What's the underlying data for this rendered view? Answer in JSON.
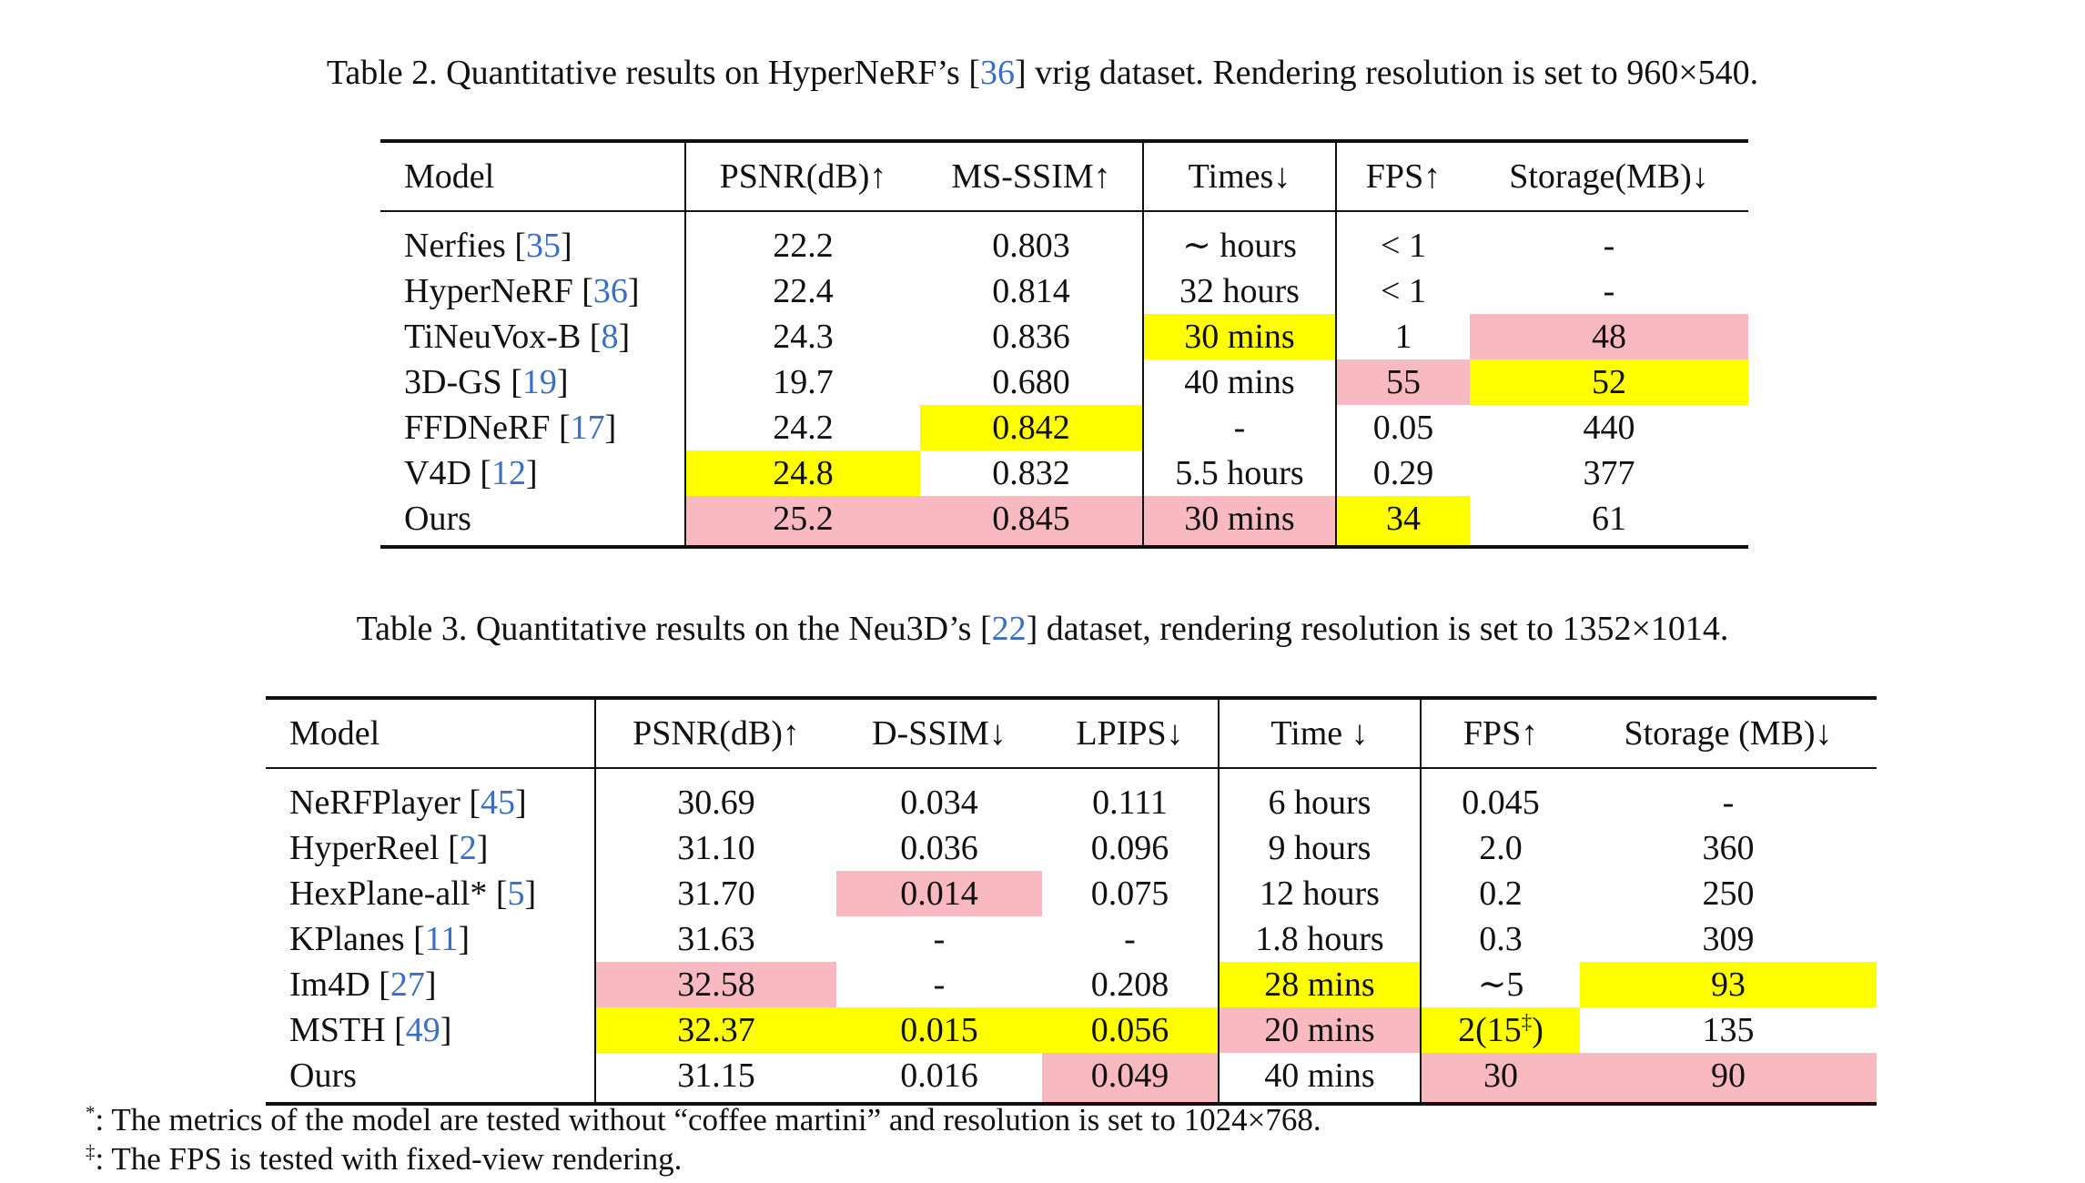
{
  "table2": {
    "caption": {
      "before": "Table 2. Quantitative results on HyperNeRF’s [",
      "ref": "36",
      "after": "] vrig dataset. Rendering resolution is set to 960×540."
    },
    "headers": [
      "Model",
      "PSNR(dB)↑",
      "MS-SSIM↑",
      "Times↓",
      "FPS↑",
      "Storage(MB)↓"
    ],
    "rows": [
      {
        "name": "Nerfies",
        "ref": "35",
        "psnr": "22.2",
        "msssim": "0.803",
        "time": "∼ hours",
        "fps": "< 1",
        "storage": "-"
      },
      {
        "name": "HyperNeRF",
        "ref": "36",
        "psnr": "22.4",
        "msssim": "0.814",
        "time": "32 hours",
        "fps": "< 1",
        "storage": "-"
      },
      {
        "name": "TiNeuVox-B",
        "ref": "8",
        "psnr": "24.3",
        "msssim": "0.836",
        "time": "30 mins",
        "fps": "1",
        "storage": "48"
      },
      {
        "name": "3D-GS",
        "ref": "19",
        "psnr": "19.7",
        "msssim": "0.680",
        "time": "40 mins",
        "fps": "55",
        "storage": "52"
      },
      {
        "name": "FFDNeRF",
        "ref": "17",
        "psnr": "24.2",
        "msssim": "0.842",
        "time": "-",
        "fps": "0.05",
        "storage": "440"
      },
      {
        "name": "V4D",
        "ref": "12",
        "psnr": "24.8",
        "msssim": "0.832",
        "time": "5.5 hours",
        "fps": "0.29",
        "storage": "377"
      },
      {
        "name": "Ours",
        "ref": "",
        "psnr": "25.2",
        "msssim": "0.845",
        "time": "30 mins",
        "fps": "34",
        "storage": "61"
      }
    ]
  },
  "table3": {
    "caption": {
      "before": "Table 3. Quantitative results on the Neu3D’s [",
      "ref": "22",
      "after": "] dataset, rendering resolution is set to 1352×1014."
    },
    "headers": [
      "Model",
      "PSNR(dB)↑",
      "D-SSIM↓",
      "LPIPS↓",
      "Time ↓",
      "FPS↑",
      "Storage (MB)↓"
    ],
    "rows": [
      {
        "name": "NeRFPlayer",
        "ref": "45",
        "psnr": "30.69",
        "dssim": "0.034",
        "lpips": "0.111",
        "time": "6 hours",
        "fps": "0.045",
        "storage": "-"
      },
      {
        "name": "HyperReel",
        "ref": "2",
        "psnr": "31.10",
        "dssim": "0.036",
        "lpips": "0.096",
        "time": "9 hours",
        "fps": "2.0",
        "storage": "360"
      },
      {
        "name": "HexPlane-all*",
        "ref": "5",
        "psnr": "31.70",
        "dssim": "0.014",
        "lpips": "0.075",
        "time": "12 hours",
        "fps": "0.2",
        "storage": "250"
      },
      {
        "name": "KPlanes",
        "ref": "11",
        "psnr": "31.63",
        "dssim": "-",
        "lpips": "-",
        "time": "1.8 hours",
        "fps": "0.3",
        "storage": "309"
      },
      {
        "name": "Im4D",
        "ref": "27",
        "psnr": "32.58",
        "dssim": "-",
        "lpips": "0.208",
        "time": "28 mins",
        "fps": "∼5",
        "storage": "93"
      },
      {
        "name": "MSTH",
        "ref": "49",
        "psnr": "32.37",
        "dssim": "0.015",
        "lpips": "0.056",
        "time": "20 mins",
        "fps_base": "2(15",
        "fps_sup": "‡",
        "fps_end": ")",
        "storage": "135"
      },
      {
        "name": "Ours",
        "ref": "",
        "psnr": "31.15",
        "dssim": "0.016",
        "lpips": "0.049",
        "time": "40 mins",
        "fps": "30",
        "storage": "90"
      }
    ]
  },
  "footnotes": {
    "star_mark": "*",
    "star_text": ": The metrics of the model are tested without “coffee martini” and resolution is set to 1024×768.",
    "dagger_mark": "‡",
    "dagger_text": ": The FPS is tested with fixed-view rendering."
  }
}
